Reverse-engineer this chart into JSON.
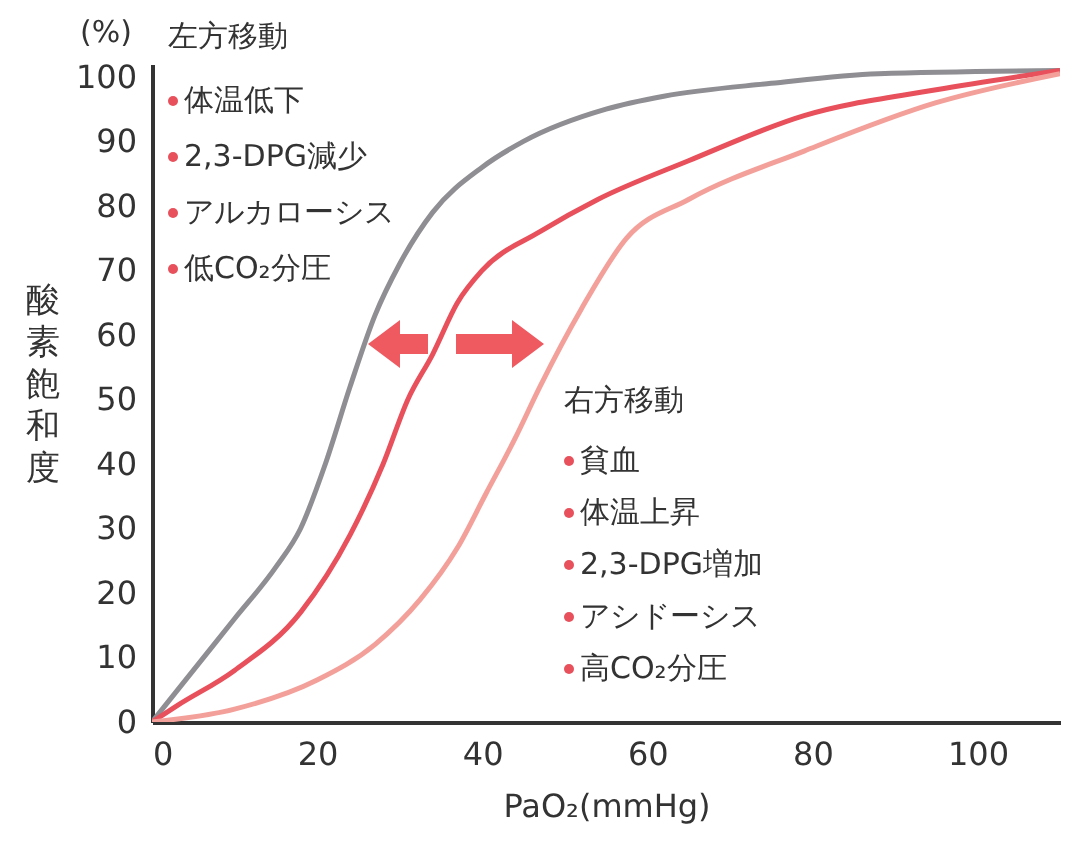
{
  "chart_data": {
    "type": "line",
    "xlabel": "PaO₂(mmHg)",
    "ylabel": "酸素飽和度",
    "xlim": [
      0,
      110
    ],
    "xticks": [
      0,
      20,
      40,
      60,
      80,
      100
    ],
    "ylim": [
      0,
      102
    ],
    "yticks": [
      0,
      10,
      20,
      30,
      40,
      50,
      60,
      70,
      80,
      90,
      100
    ],
    "grid": false,
    "annotations": [
      "(%)",
      "左方移動",
      "体温低下",
      "2,3-DPG減少",
      "アルカローシス",
      "低CO₂分圧",
      "右方移動",
      "貧血",
      "体温上昇",
      "2,3-DPG増加",
      "アシドーシス",
      "高CO₂分圧"
    ],
    "series": [
      {
        "color": "#8e8e93",
        "x": [
          0,
          5,
          10,
          15,
          18,
          21,
          24,
          27,
          30,
          34,
          40,
          45,
          55,
          62,
          75,
          88,
          110
        ],
        "values": [
          0,
          8,
          16,
          24,
          30,
          40,
          52,
          63,
          71,
          79,
          86,
          90,
          95,
          97,
          99,
          100.5,
          101
        ]
      },
      {
        "color": "#e8505b",
        "x": [
          0,
          3,
          10,
          18,
          24,
          28,
          31,
          34,
          37,
          40,
          47,
          54,
          65,
          79,
          95,
          110
        ],
        "values": [
          0,
          2.5,
          8,
          17,
          29,
          40,
          50,
          57,
          65,
          70,
          76,
          81,
          87,
          94,
          98,
          101
        ]
      },
      {
        "color": "#f4a09a",
        "x": [
          0,
          10,
          20,
          27,
          32.5,
          37,
          40.5,
          44,
          47,
          52,
          57.5,
          65,
          79,
          95,
          110
        ],
        "values": [
          0,
          2,
          6.5,
          12,
          19,
          27,
          35.5,
          44,
          52,
          64,
          75,
          81,
          88.5,
          96,
          100.5
        ]
      }
    ]
  }
}
